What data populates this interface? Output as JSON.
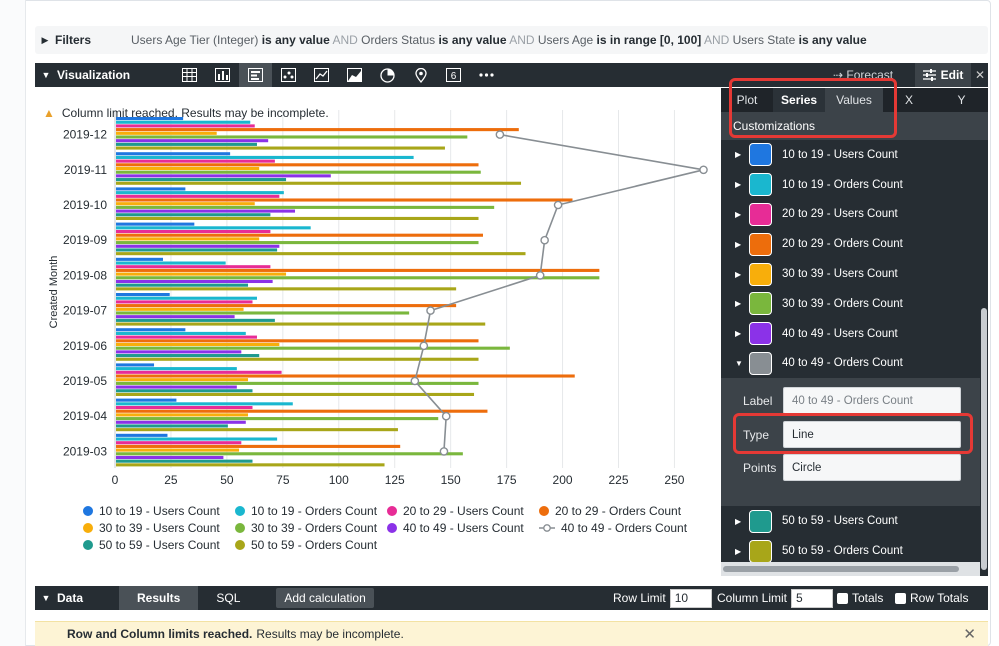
{
  "filters": {
    "label": "Filters",
    "parts": [
      {
        "field": "Users Age Tier (Integer)",
        "cond": " is any value"
      },
      {
        "op": " AND "
      },
      {
        "field": "Orders Status",
        "cond": " is any value"
      },
      {
        "op": " AND "
      },
      {
        "field": "Users Age",
        "cond": " is in range [0, 100]"
      },
      {
        "op": " AND "
      },
      {
        "field": "Users State",
        "cond": " is any value"
      }
    ]
  },
  "visualization": {
    "label": "Visualization",
    "forecast_label": "Forecast",
    "edit_label": "Edit",
    "type_icons": [
      "table-icon",
      "column-chart-icon",
      "bar-chart-icon",
      "scatter-icon",
      "line-chart-icon",
      "area-chart-icon",
      "pie-chart-icon",
      "map-pin-icon",
      "single-value-icon",
      "more-icon"
    ],
    "warning": "Column limit reached. Results may be incomplete."
  },
  "chart_data": {
    "type": "bar",
    "orientation": "horizontal",
    "ylabel": "Created Month",
    "xlabel": "",
    "xlim": [
      0,
      265
    ],
    "xticks": [
      0,
      25,
      50,
      75,
      100,
      125,
      150,
      175,
      200,
      225,
      250
    ],
    "categories": [
      "2019-12",
      "2019-11",
      "2019-10",
      "2019-09",
      "2019-08",
      "2019-07",
      "2019-06",
      "2019-05",
      "2019-04",
      "2019-03"
    ],
    "series": [
      {
        "name": "10 to 19 - Users Count",
        "color": "#1f77e0",
        "kind": "bar",
        "values": [
          30,
          51,
          31,
          35,
          21,
          24,
          31,
          17,
          27,
          23
        ]
      },
      {
        "name": "10 to 19 - Orders Count",
        "color": "#1ab7cf",
        "kind": "bar",
        "values": [
          60,
          133,
          75,
          87,
          49,
          63,
          58,
          54,
          79,
          72
        ]
      },
      {
        "name": "20 to 29 - Users Count",
        "color": "#e72c96",
        "kind": "bar",
        "values": [
          62,
          71,
          73,
          69,
          69,
          61,
          63,
          74,
          61,
          56
        ]
      },
      {
        "name": "20 to 29 - Orders Count",
        "color": "#ed6d0c",
        "kind": "bar",
        "values": [
          180,
          162,
          204,
          164,
          216,
          152,
          162,
          205,
          166,
          127
        ]
      },
      {
        "name": "30 to 39 - Users Count",
        "color": "#f8ae0b",
        "kind": "bar",
        "values": [
          45,
          64,
          62,
          64,
          76,
          57,
          73,
          59,
          59,
          55
        ]
      },
      {
        "name": "30 to 39 - Orders Count",
        "color": "#7ab73d",
        "kind": "bar",
        "values": [
          157,
          163,
          169,
          162,
          216,
          131,
          176,
          162,
          144,
          155
        ]
      },
      {
        "name": "40 to 49 - Users Count",
        "color": "#8b32e8",
        "kind": "bar",
        "values": [
          68,
          96,
          80,
          73,
          70,
          53,
          56,
          54,
          58,
          48
        ]
      },
      {
        "name": "40 to 49 - Orders Count",
        "color": "#888e93",
        "kind": "line",
        "values": [
          172,
          263,
          198,
          192,
          190,
          141,
          138,
          134,
          148,
          147
        ]
      },
      {
        "name": "50 to 59 - Users Count",
        "color": "#1f9a8e",
        "kind": "bar",
        "values": [
          63,
          76,
          69,
          72,
          59,
          71,
          64,
          61,
          50,
          61
        ]
      },
      {
        "name": "50 to 59 - Orders Count",
        "color": "#a8a619",
        "kind": "bar",
        "values": [
          147,
          181,
          162,
          183,
          152,
          165,
          162,
          160,
          126,
          120
        ]
      }
    ]
  },
  "panel": {
    "tabs": [
      "Plot",
      "Series",
      "Values",
      "X",
      "Y"
    ],
    "active_tab": "Series",
    "customizations_label": "Customizations",
    "fields": {
      "label_label": "Label",
      "label_placeholder": "40 to 49 - Orders Count",
      "type_label": "Type",
      "type_value": "Line",
      "points_label": "Points",
      "points_value": "Circle"
    }
  },
  "data_bar": {
    "label": "Data",
    "tabs": [
      "Results",
      "SQL"
    ],
    "active_tab": "Results",
    "add_calc": "Add calculation",
    "row_limit_label": "Row Limit",
    "row_limit_value": "10",
    "column_limit_label": "Column Limit",
    "column_limit_value": "5",
    "totals_label": "Totals",
    "row_totals_label": "Row Totals"
  },
  "warning_bar": {
    "bold": "Row and Column limits reached.",
    "text": "Results may be incomplete."
  }
}
